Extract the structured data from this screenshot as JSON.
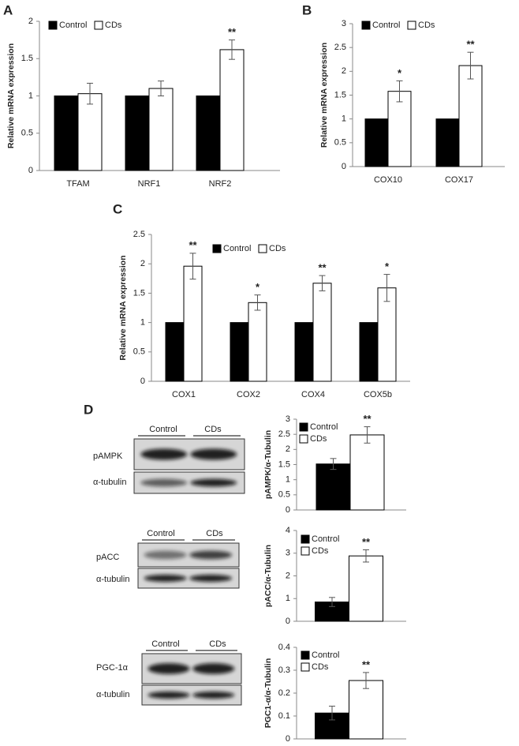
{
  "chart_data": [
    {
      "type": "bar",
      "panel": "A",
      "ylabel": "Relative mRNA expression",
      "categories": [
        "TFAM",
        "NRF1",
        "NRF2"
      ],
      "ylim": [
        0,
        2
      ],
      "yticks": [
        0,
        0.5,
        1,
        1.5,
        2
      ],
      "series": [
        {
          "name": "Control",
          "color": "#000000",
          "values": [
            1,
            1,
            1
          ]
        },
        {
          "name": "CDs",
          "color": "#ffffff",
          "values": [
            1.03,
            1.1,
            1.62
          ],
          "errors": [
            0.14,
            0.1,
            0.13
          ],
          "significance": [
            null,
            null,
            "**"
          ]
        }
      ]
    },
    {
      "type": "bar",
      "panel": "B",
      "ylabel": "Relative mRNA expression",
      "categories": [
        "COX10",
        "COX17"
      ],
      "ylim": [
        0,
        3
      ],
      "yticks": [
        0,
        0.5,
        1,
        1.5,
        2,
        2.5,
        3
      ],
      "series": [
        {
          "name": "Control",
          "color": "#000000",
          "values": [
            1,
            1
          ]
        },
        {
          "name": "CDs",
          "color": "#ffffff",
          "values": [
            1.58,
            2.12
          ],
          "errors": [
            0.22,
            0.28
          ],
          "significance": [
            "*",
            "**"
          ]
        }
      ]
    },
    {
      "type": "bar",
      "panel": "C",
      "ylabel": "Relative mRNA expression",
      "categories": [
        "COX1",
        "COX2",
        "COX4",
        "COX5b"
      ],
      "ylim": [
        0,
        2.5
      ],
      "yticks": [
        0,
        0.5,
        1,
        1.5,
        2,
        2.5
      ],
      "series": [
        {
          "name": "Control",
          "color": "#000000",
          "values": [
            1,
            1,
            1,
            1
          ]
        },
        {
          "name": "CDs",
          "color": "#ffffff",
          "values": [
            1.96,
            1.34,
            1.67,
            1.59
          ],
          "errors": [
            0.22,
            0.13,
            0.13,
            0.23
          ],
          "significance": [
            "**",
            "*",
            "**",
            "*"
          ]
        }
      ]
    },
    {
      "type": "bar",
      "panel": "D",
      "ylabel": "pAMPK/α-Tubulin",
      "categories": [
        null
      ],
      "ylim": [
        0,
        3
      ],
      "yticks": [
        0,
        0.5,
        1,
        1.5,
        2,
        2.5,
        3
      ],
      "series": [
        {
          "name": "Control",
          "color": "#000000",
          "values": [
            1.52
          ],
          "errors": [
            0.18
          ]
        },
        {
          "name": "CDs",
          "color": "#ffffff",
          "values": [
            2.48
          ],
          "errors": [
            0.27
          ],
          "significance": [
            "**"
          ]
        }
      ]
    },
    {
      "type": "bar",
      "ylabel": "pACC/α-Tubulin",
      "categories": [
        null
      ],
      "ylim": [
        0,
        4
      ],
      "yticks": [
        0,
        1,
        2,
        3,
        4
      ],
      "series": [
        {
          "name": "Control",
          "color": "#000000",
          "values": [
            0.85
          ],
          "errors": [
            0.2
          ]
        },
        {
          "name": "CDs",
          "color": "#ffffff",
          "values": [
            2.88
          ],
          "errors": [
            0.27
          ],
          "significance": [
            "**"
          ]
        }
      ]
    },
    {
      "type": "bar",
      "ylabel": "PGC1-α/α-Tubulin",
      "categories": [
        null
      ],
      "ylim": [
        0,
        0.4
      ],
      "yticks": [
        0,
        0.1,
        0.2,
        0.3,
        0.4
      ],
      "series": [
        {
          "name": "Control",
          "color": "#000000",
          "values": [
            0.113
          ],
          "errors": [
            0.03
          ]
        },
        {
          "name": "CDs",
          "color": "#ffffff",
          "values": [
            0.255
          ],
          "errors": [
            0.035
          ],
          "significance": [
            "**"
          ]
        }
      ]
    }
  ],
  "blots": [
    {
      "header": [
        "Control",
        "CDs"
      ],
      "rows": [
        "pAMPK",
        "α-tubulin"
      ]
    },
    {
      "header": [
        "Control",
        "CDs"
      ],
      "rows": [
        "pACC",
        "α-tubulin"
      ]
    },
    {
      "header": [
        "Control",
        "CDs"
      ],
      "rows": [
        "PGC-1α",
        "α-tubulin"
      ]
    }
  ]
}
